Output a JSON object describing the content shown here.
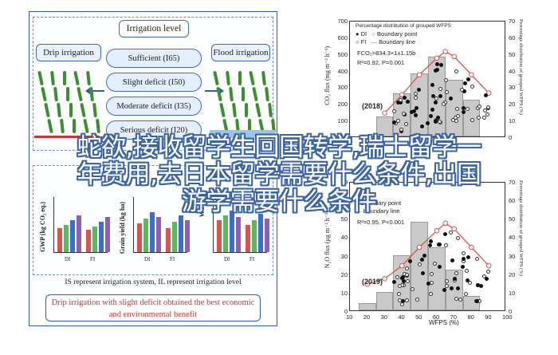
{
  "abstract": {
    "title": "Irrigation level",
    "left_box": "Drip irrigation",
    "right_box": "Flood irrigation",
    "levels": [
      "Sufficient (I65)",
      "Slight deficit (I50)",
      "Moderate deficit (I35)",
      "Serious deficit (I20)"
    ],
    "charts": [
      {
        "ylabel": "GWP (kg CO₂ eq.)",
        "x": [
          "DI",
          "FI"
        ]
      },
      {
        "ylabel": "Grain yield (kg ha)",
        "x": [
          "DI",
          "FI"
        ]
      },
      {
        "ylabel": "WUE",
        "x": [
          "DI",
          "FI"
        ]
      }
    ],
    "note": "IS represent irrigation system, IL represent irrigation level",
    "conclusion_line1": "Drip irrigation with slight deficit obtained the best economic",
    "conclusion_line2": "and environmental benefit",
    "colors": {
      "border": "#2f5fb3",
      "conclusion_text": "#c0392b",
      "bar_red": "#d9534f",
      "bar_green": "#5cb85c",
      "bar_blue": "#3a6fd0",
      "bar_purple": "#8e5fb8"
    }
  },
  "chart_data": [
    {
      "type": "scatter",
      "year_label": "(2018)",
      "xlabel": "WFPS (%)",
      "ylabel": "CO₂ flux (mg m⁻² h⁻¹)",
      "ylabel_right": "Percentage distribution of grouped WFPS (%)",
      "xlim": [
        10,
        100
      ],
      "ylim": [
        0,
        700
      ],
      "y2lim": [
        0,
        70
      ],
      "yticks": [
        0,
        100,
        200,
        300,
        400,
        500,
        600,
        700
      ],
      "y2ticks": [
        0,
        10,
        20,
        30,
        40,
        50,
        60,
        70
      ],
      "legend": [
        "Percentage distribution of grouped WFPS",
        "DI",
        "FI",
        "Boundary point",
        "Boundary line"
      ],
      "equation_line1": "FCO₂=834.3×1±1.15b",
      "equation_line2": "R²=0.92, P=0.001",
      "histogram": {
        "bins": [
          30,
          40,
          50,
          60,
          70,
          80
        ],
        "values": [
          12,
          26,
          38,
          48,
          34,
          22
        ]
      },
      "boundary_line": {
        "x": [
          30,
          40,
          50,
          60,
          65,
          70,
          80,
          90
        ],
        "y": [
          150,
          260,
          380,
          480,
          520,
          490,
          380,
          270
        ]
      }
    },
    {
      "type": "scatter",
      "year_label": "(2019)",
      "xlabel": "WFPS (%)",
      "ylabel": "N₂O flux (μg m⁻² h⁻¹)",
      "ylabel_right": "Percentage distribution of grouped WFPS (%)",
      "xlim": [
        10,
        100
      ],
      "ylim": [
        0,
        70
      ],
      "y2lim": [
        0,
        70
      ],
      "yticks": [
        0,
        10,
        20,
        30,
        40,
        50,
        60,
        70
      ],
      "y2ticks": [
        0,
        10,
        20,
        30,
        40,
        50,
        60,
        70
      ],
      "xticks": [
        10,
        20,
        30,
        40,
        50,
        60,
        70,
        80,
        90,
        100
      ],
      "legend": [
        "Boundary point",
        "Boundary line"
      ],
      "equation_line2": "R²=0.95, P<0.001",
      "histogram": {
        "bins": [
          20,
          30,
          40,
          50,
          60,
          70,
          80
        ],
        "values": [
          4,
          10,
          30,
          48,
          34,
          22,
          8
        ]
      },
      "boundary_line": {
        "x": [
          20,
          30,
          40,
          50,
          60,
          65,
          70,
          80,
          90
        ],
        "y": [
          15,
          18,
          25,
          35,
          44,
          48,
          45,
          35,
          25
        ]
      }
    }
  ],
  "overlay": {
    "line1": "蛇欲,接收留学生回国转学,瑞士留学一",
    "line2": "年费用,去日本留学需要什么条件,出国",
    "line3": "游学需要什么条件"
  }
}
